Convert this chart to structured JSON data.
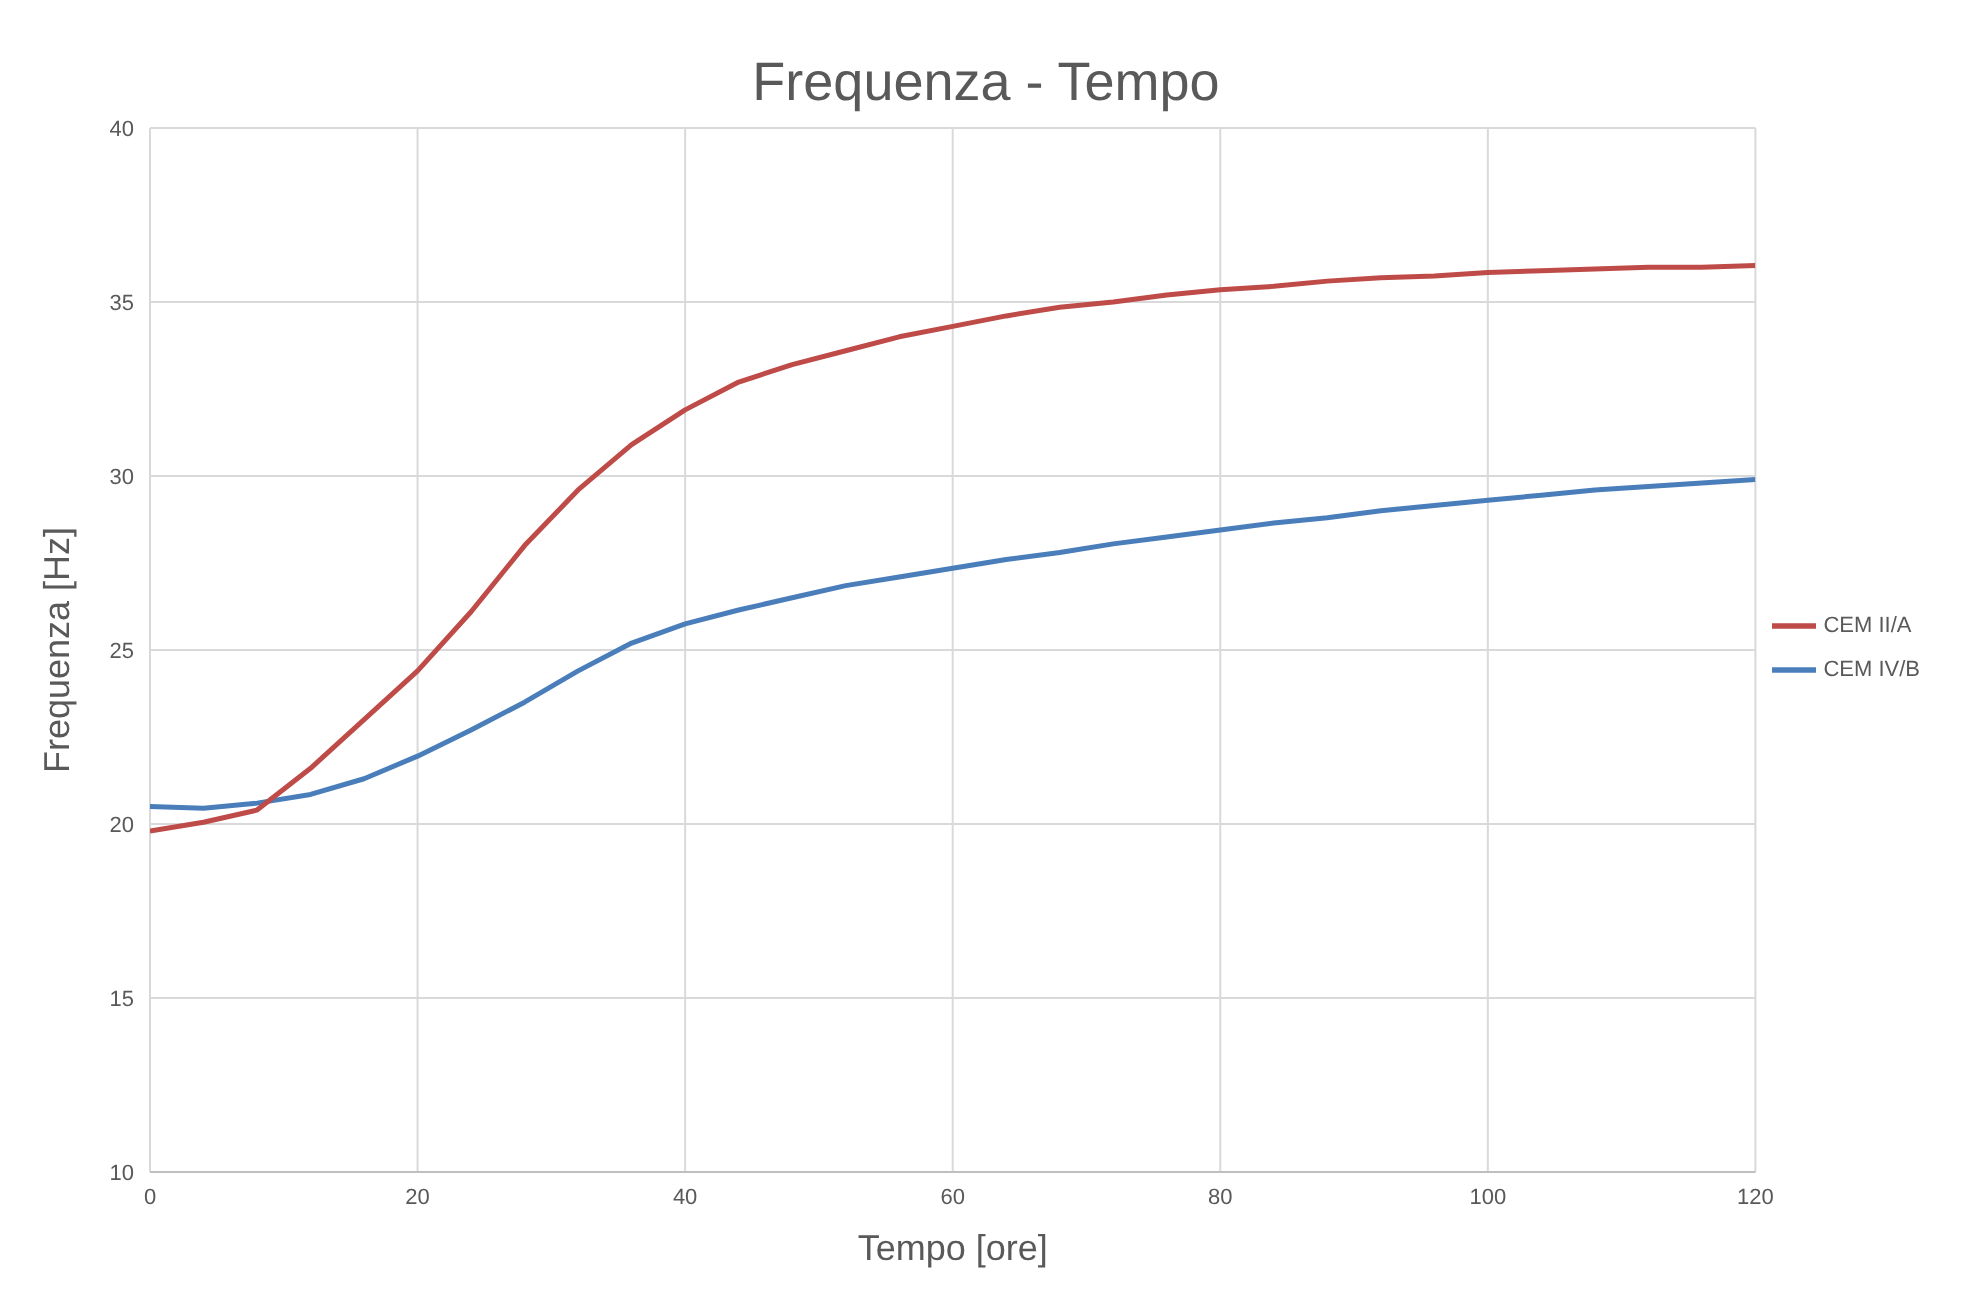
{
  "chart_data": {
    "type": "line",
    "title": "Frequenza - Tempo",
    "xlabel": "Tempo [ore]",
    "ylabel": "Frequenza [Hz]",
    "x": [
      0,
      4,
      8,
      12,
      16,
      20,
      24,
      28,
      32,
      36,
      40,
      44,
      48,
      52,
      56,
      60,
      64,
      68,
      72,
      76,
      80,
      84,
      88,
      92,
      96,
      100,
      104,
      108,
      112,
      116,
      120
    ],
    "series": [
      {
        "name": "CEM IV/B",
        "color": "#4a7ebb",
        "values": [
          20.5,
          20.45,
          20.6,
          20.85,
          21.3,
          21.95,
          22.7,
          23.5,
          24.4,
          25.2,
          25.75,
          26.15,
          26.5,
          26.85,
          27.1,
          27.35,
          27.6,
          27.8,
          28.05,
          28.25,
          28.45,
          28.65,
          28.8,
          29.0,
          29.15,
          29.3,
          29.45,
          29.6,
          29.7,
          29.8,
          29.9
        ]
      },
      {
        "name": "CEM II/A",
        "color": "#be4b48",
        "values": [
          19.8,
          20.05,
          20.4,
          21.6,
          23.0,
          24.4,
          26.1,
          28.0,
          29.6,
          30.9,
          31.9,
          32.7,
          33.2,
          33.6,
          34.0,
          34.3,
          34.6,
          34.85,
          35.0,
          35.2,
          35.35,
          35.45,
          35.6,
          35.7,
          35.75,
          35.85,
          35.9,
          35.95,
          36.0,
          36.0,
          36.05
        ]
      }
    ],
    "xlim": [
      0,
      120
    ],
    "xticks": [
      0,
      20,
      40,
      60,
      80,
      100,
      120
    ],
    "ylim": [
      10,
      40
    ],
    "yticks": [
      10,
      15,
      20,
      25,
      30,
      35,
      40
    ],
    "grid": true,
    "legend": "right",
    "marker": "none",
    "line_style": "solid"
  }
}
